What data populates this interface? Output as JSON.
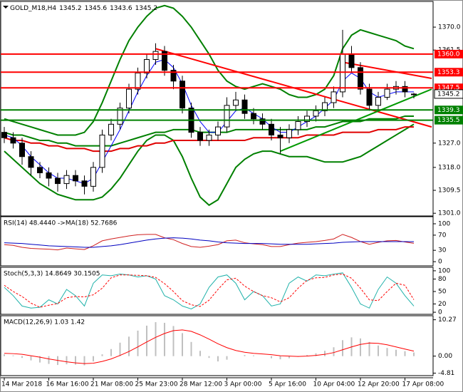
{
  "chart_data": [
    {
      "type": "candlestick",
      "title": "GOLD_M18,H4",
      "categories": [
        "14 Mar 2018",
        null,
        null,
        null,
        null,
        "16 Mar 16:00",
        null,
        null,
        null,
        null,
        "21 Mar 08:00",
        null,
        null,
        null,
        null,
        "25 Mar 23:00",
        null,
        null,
        null,
        null,
        "28 Mar 12:00",
        null,
        null,
        null,
        null,
        "3 Apr 00:00",
        null,
        null,
        null,
        null,
        "5 Apr 16:00",
        null,
        null,
        null,
        null,
        "10 Apr 04:00",
        null,
        null,
        null,
        null,
        "12 Apr 20:00",
        null,
        null,
        null,
        null,
        "17 Apr 08:00",
        null
      ],
      "open": [
        1331,
        1329,
        1327,
        1322,
        1318,
        1316,
        1314,
        1312,
        1315,
        1313,
        1311,
        1318,
        1330,
        1334,
        1340,
        1347,
        1353,
        1358,
        1361,
        1354,
        1350,
        1340,
        1331,
        1328,
        1330,
        1333,
        1341,
        1343,
        1338,
        1336,
        1334,
        1330,
        1329,
        1332,
        1335,
        1337,
        1339,
        1342,
        1346,
        1360,
        1355,
        1347,
        1341,
        1344,
        1347,
        1348,
        1345.2
      ],
      "high": [
        1333,
        1331,
        1329,
        1324,
        1320,
        1318,
        1316,
        1317,
        1317,
        1315,
        1320,
        1332,
        1336,
        1342,
        1349,
        1355,
        1360,
        1364,
        1363,
        1356,
        1352,
        1342,
        1333,
        1332,
        1335,
        1344,
        1346,
        1345,
        1340,
        1338,
        1336,
        1333,
        1334,
        1337,
        1339,
        1341,
        1344,
        1348,
        1369,
        1363,
        1357,
        1349,
        1346,
        1349,
        1350,
        1350,
        1345.6
      ],
      "low": [
        1327,
        1325,
        1319,
        1315,
        1314,
        1311,
        1309,
        1310,
        1311,
        1308,
        1309,
        1316,
        1328,
        1332,
        1338,
        1345,
        1351,
        1356,
        1352,
        1347,
        1338,
        1329,
        1326,
        1326,
        1328,
        1331,
        1339,
        1336,
        1334,
        1332,
        1328,
        1323,
        1327,
        1330,
        1333,
        1335,
        1337,
        1340,
        1344,
        1353,
        1345,
        1339,
        1339,
        1343,
        1345,
        1344,
        1343.6
      ],
      "close": [
        1329,
        1327,
        1322,
        1318,
        1316,
        1314,
        1312,
        1315,
        1313,
        1311,
        1318,
        1330,
        1334,
        1340,
        1347,
        1353,
        1358,
        1361,
        1354,
        1350,
        1340,
        1331,
        1328,
        1330,
        1333,
        1341,
        1343,
        1338,
        1336,
        1334,
        1330,
        1329,
        1332,
        1335,
        1337,
        1339,
        1342,
        1346,
        1360,
        1355,
        1347,
        1341,
        1344,
        1347,
        1348,
        1346,
        1345.2
      ],
      "up_color": "#ffffff",
      "down_color": "#000000",
      "wick_color": "#000000",
      "overlays": [
        {
          "color": "#008000",
          "width": 2,
          "values": [
            1336,
            1335,
            1334,
            1333,
            1332,
            1331,
            1330,
            1330,
            1330,
            1331,
            1335,
            1342,
            1350,
            1358,
            1365,
            1370,
            1374,
            1377,
            1378,
            1377,
            1374,
            1370,
            1365,
            1360,
            1354,
            1350,
            1348,
            1347,
            1348,
            1349,
            1348,
            1347,
            1345,
            1344,
            1344,
            1345,
            1347,
            1352,
            1362,
            1367,
            1369,
            1368,
            1367,
            1366,
            1365,
            1363,
            1362
          ]
        },
        {
          "color": "#008000",
          "width": 2,
          "values": [
            1324,
            1321,
            1318,
            1315,
            1312,
            1310,
            1308,
            1307,
            1306,
            1306,
            1306,
            1307,
            1310,
            1314,
            1319,
            1324,
            1328,
            1330,
            1330,
            1328,
            1322,
            1314,
            1307,
            1304,
            1306,
            1312,
            1318,
            1321,
            1323,
            1324,
            1324,
            1323,
            1322,
            1322,
            1322,
            1321,
            1320,
            1320,
            1320,
            1321,
            1322,
            1324,
            1326,
            1328,
            1330,
            1332,
            1334
          ]
        },
        {
          "color": "#008000",
          "width": 2,
          "values": [
            1331,
            1330,
            1330,
            1329,
            1328,
            1328,
            1327,
            1327,
            1326,
            1326,
            1326,
            1326,
            1326,
            1327,
            1328,
            1329,
            1330,
            1331,
            1331,
            1332,
            1332,
            1332,
            1331,
            1331,
            1331,
            1331,
            1332,
            1332,
            1332,
            1332,
            1332,
            1332,
            1332,
            1332,
            1332,
            1333,
            1333,
            1334,
            1335,
            1335,
            1335,
            1336,
            1336,
            1336,
            1336,
            1337,
            1337
          ]
        },
        {
          "color": "#e00000",
          "width": 2,
          "values": [
            1329,
            1328,
            1328,
            1327,
            1327,
            1326,
            1326,
            1325,
            1325,
            1325,
            1324,
            1324,
            1324,
            1325,
            1325,
            1326,
            1326,
            1327,
            1327,
            1328,
            1328,
            1328,
            1328,
            1328,
            1328,
            1328,
            1328,
            1328,
            1329,
            1329,
            1329,
            1329,
            1329,
            1329,
            1330,
            1330,
            1330,
            1330,
            1331,
            1331,
            1331,
            1331,
            1332,
            1332,
            1332,
            1333,
            1333
          ]
        },
        {
          "color": "#0000ff",
          "width": 1,
          "values": [
            1330,
            1329,
            1326,
            1322,
            1319,
            1316,
            1314,
            1314,
            1313,
            1312,
            1314,
            1320,
            1326,
            1332,
            1339,
            1346,
            1352,
            1357,
            1358,
            1355,
            1349,
            1341,
            1335,
            1331,
            1331,
            1335,
            1339,
            1340,
            1338,
            1336,
            1333,
            1331,
            1331,
            1333,
            1335,
            1337,
            1340,
            1343,
            1350,
            1353,
            1351,
            1346,
            1344,
            1345,
            1346,
            1346,
            1346
          ]
        }
      ],
      "trendlines": [
        {
          "color": "#ff0000",
          "x": [
            17,
            48
          ],
          "values": [
            1362,
            1333
          ]
        },
        {
          "color": "#ff0000",
          "x": [
            38,
            48
          ],
          "values": [
            1357,
            1351
          ]
        },
        {
          "color": "#009900",
          "x": [
            31,
            48
          ],
          "values": [
            1324,
            1347
          ]
        }
      ],
      "levels": [
        {
          "value": 1360,
          "label": "1360.0",
          "color": "#ff0000"
        },
        {
          "value": 1353.3,
          "label": "1353.3",
          "color": "#ff0000"
        },
        {
          "value": 1347.5,
          "label": "1347.5",
          "color": "#ff0000"
        },
        {
          "value": 1339.3,
          "label": "1339.3",
          "color": "#008000"
        },
        {
          "value": 1335.5,
          "label": "1335.5",
          "color": "#008000"
        }
      ],
      "ylim": [
        1300,
        1379
      ],
      "yticks": [
        {
          "value": 1301,
          "label": "1301.0"
        },
        1309.5,
        {
          "value": 1318,
          "label": "1318.0"
        },
        {
          "value": 1327,
          "label": "1327.0"
        },
        1361.5,
        {
          "value": 1370,
          "label": "1370.0"
        }
      ]
    },
    {
      "type": "line",
      "title": "RSI(14) 48.4440 ->MA(18) 52.7686",
      "series": [
        {
          "color": "#d02020",
          "style": "solid",
          "values": [
            45,
            43,
            38,
            35,
            34,
            33,
            31,
            36,
            34,
            32,
            42,
            55,
            60,
            64,
            68,
            71,
            72,
            72,
            63,
            58,
            48,
            40,
            38,
            41,
            45,
            55,
            57,
            50,
            47,
            45,
            40,
            40,
            45,
            49,
            51,
            53,
            56,
            60,
            72,
            64,
            53,
            46,
            51,
            55,
            56,
            52,
            48.444
          ]
        },
        {
          "color": "#0000c0",
          "style": "solid",
          "values": [
            50,
            49,
            48,
            46,
            44,
            42,
            41,
            40,
            39,
            38,
            38,
            40,
            42,
            45,
            49,
            53,
            57,
            60,
            62,
            63,
            62,
            60,
            57,
            55,
            52,
            50,
            49,
            48,
            48,
            48,
            47,
            46,
            46,
            46,
            46,
            47,
            48,
            49,
            51,
            52,
            53,
            53,
            53,
            53,
            53,
            53,
            52.7686
          ]
        }
      ],
      "ylim": [
        -11,
        115
      ],
      "yticks": [
        0,
        30,
        70,
        100
      ]
    },
    {
      "type": "line",
      "title": "Stoch(5,3,3) 14.8649 30.1505",
      "series": [
        {
          "color": "#20b2aa",
          "style": "solid",
          "values": [
            60,
            40,
            15,
            10,
            12,
            30,
            20,
            55,
            40,
            15,
            70,
            90,
            88,
            92,
            90,
            85,
            88,
            80,
            40,
            30,
            15,
            8,
            20,
            60,
            85,
            90,
            70,
            30,
            50,
            40,
            15,
            20,
            70,
            85,
            75,
            90,
            88,
            92,
            95,
            60,
            20,
            10,
            55,
            85,
            70,
            40,
            14.8649
          ]
        },
        {
          "color": "#ff0000",
          "style": "dashed",
          "values": [
            65,
            50,
            38,
            22,
            12,
            17,
            21,
            35,
            38,
            37,
            42,
            58,
            83,
            90,
            90,
            89,
            88,
            84,
            69,
            50,
            28,
            18,
            14,
            29,
            55,
            78,
            82,
            63,
            50,
            40,
            35,
            25,
            35,
            58,
            77,
            83,
            84,
            90,
            92,
            82,
            58,
            30,
            28,
            50,
            70,
            65,
            30.1505
          ]
        }
      ],
      "ylim": [
        -5,
        105
      ],
      "yticks": [
        0,
        20,
        50,
        80,
        100
      ]
    },
    {
      "type": "macd",
      "title": "MACD(12,26,9) 1.03 1.42",
      "series": [
        {
          "color": "#c0c0c0",
          "style": "bar",
          "values": [
            0.5,
            0.2,
            -0.5,
            -1.2,
            -1.8,
            -2.2,
            -2.5,
            -2.3,
            -2.4,
            -2.6,
            -1.5,
            0.5,
            2,
            3.8,
            5.5,
            7.2,
            8.6,
            9.6,
            9.4,
            8.5,
            6.5,
            4,
            1.5,
            -0.5,
            -1.5,
            -1,
            0,
            0.3,
            0.2,
            0,
            -0.6,
            -0.9,
            -0.6,
            -0.2,
            0.3,
            0.8,
            1.5,
            2.5,
            4.5,
            5.3,
            5,
            4,
            3,
            2.3,
            1.8,
            1.4,
            1.03
          ]
        },
        {
          "color": "#ff0000",
          "style": "solid",
          "values": [
            0.8,
            0.7,
            0.5,
            0.1,
            -0.3,
            -0.8,
            -1.2,
            -1.6,
            -1.9,
            -2.1,
            -2,
            -1.5,
            -0.8,
            0.2,
            1.3,
            2.6,
            4,
            5.3,
            6.4,
            7.2,
            7.4,
            7,
            6,
            4.8,
            3.5,
            2.4,
            1.6,
            1.1,
            0.8,
            0.6,
            0.4,
            0.1,
            0,
            -0.1,
            0,
            0.2,
            0.5,
            1,
            1.8,
            2.6,
            3.3,
            3.7,
            3.6,
            3.2,
            2.6,
            2,
            1.42
          ]
        }
      ],
      "ylim": [
        -5.5,
        11
      ],
      "yticks": [
        -4.81,
        {
          "value": 0,
          "label": "0.00"
        },
        10.27
      ]
    }
  ]
}
